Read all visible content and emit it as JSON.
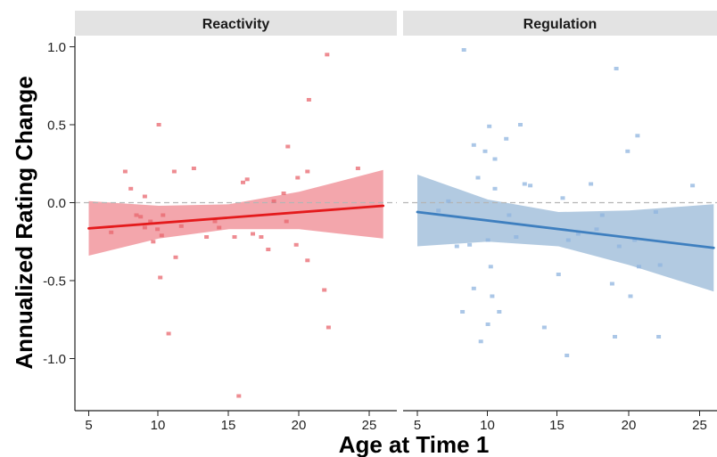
{
  "chart_data": {
    "type": "scatter",
    "xlabel": "Age at Time 1",
    "ylabel": "Annualized Rating Change",
    "xlim": [
      4,
      26.5
    ],
    "ylim": [
      -1.35,
      1.08
    ],
    "x_ticks": [
      "5",
      "10",
      "15",
      "20",
      "25"
    ],
    "y_ticks": [
      "1.0",
      "0.5",
      "0.0",
      "-0.5",
      "-1.0"
    ],
    "reference_line_y": 0,
    "reference_line_style": "dashed grey",
    "grid": false,
    "legend": "none",
    "panels": [
      {
        "facet": "Reactivity",
        "point_color": "#E8666E",
        "line_color": "#E41A1C",
        "band_color": "#F0939A",
        "fit": {
          "x": [
            5,
            26
          ],
          "y": [
            -0.165,
            -0.02
          ]
        },
        "ci_upper": {
          "x": [
            5,
            10,
            15,
            20,
            26
          ],
          "y": [
            0.01,
            -0.02,
            -0.01,
            0.07,
            0.21
          ]
        },
        "ci_lower": {
          "x": [
            5,
            10,
            15,
            20,
            26
          ],
          "y": [
            -0.34,
            -0.23,
            -0.17,
            -0.17,
            -0.23
          ]
        },
        "points": [
          [
            6.6,
            -0.19
          ],
          [
            7.6,
            0.2
          ],
          [
            8.0,
            0.09
          ],
          [
            8.4,
            -0.08
          ],
          [
            8.7,
            -0.09
          ],
          [
            9.0,
            -0.16
          ],
          [
            9.0,
            0.04
          ],
          [
            9.4,
            -0.12
          ],
          [
            9.6,
            -0.25
          ],
          [
            9.9,
            -0.17
          ],
          [
            10.0,
            0.5
          ],
          [
            10.1,
            -0.48
          ],
          [
            10.3,
            -0.08
          ],
          [
            10.2,
            -0.21
          ],
          [
            10.7,
            -0.84
          ],
          [
            11.1,
            0.2
          ],
          [
            11.2,
            -0.35
          ],
          [
            11.6,
            -0.15
          ],
          [
            12.5,
            0.22
          ],
          [
            13.4,
            -0.22
          ],
          [
            14.3,
            -0.16
          ],
          [
            14.0,
            -0.12
          ],
          [
            15.4,
            -0.22
          ],
          [
            15.7,
            -1.24
          ],
          [
            16.0,
            0.13
          ],
          [
            16.3,
            0.15
          ],
          [
            16.7,
            -0.2
          ],
          [
            17.3,
            -0.22
          ],
          [
            17.8,
            -0.3
          ],
          [
            18.2,
            0.01
          ],
          [
            18.9,
            0.06
          ],
          [
            19.1,
            -0.12
          ],
          [
            19.2,
            0.36
          ],
          [
            19.8,
            -0.27
          ],
          [
            19.9,
            0.16
          ],
          [
            20.7,
            0.66
          ],
          [
            20.6,
            0.2
          ],
          [
            20.6,
            -0.37
          ],
          [
            21.8,
            -0.56
          ],
          [
            22.0,
            0.95
          ],
          [
            22.1,
            -0.8
          ],
          [
            24.2,
            0.22
          ]
        ]
      },
      {
        "facet": "Regulation",
        "point_color": "#8FB4DF",
        "line_color": "#3E7FBF",
        "band_color": "#A1BEDA",
        "fit": {
          "x": [
            5,
            26
          ],
          "y": [
            -0.06,
            -0.29
          ]
        },
        "ci_upper": {
          "x": [
            5,
            10,
            15,
            20,
            26
          ],
          "y": [
            0.18,
            0.02,
            -0.06,
            -0.05,
            -0.01
          ]
        },
        "ci_lower": {
          "x": [
            5,
            10,
            15,
            20,
            26
          ],
          "y": [
            -0.28,
            -0.25,
            -0.28,
            -0.4,
            -0.57
          ]
        },
        "points": [
          [
            6.5,
            -0.05
          ],
          [
            7.2,
            0.01
          ],
          [
            7.8,
            -0.28
          ],
          [
            8.2,
            -0.7
          ],
          [
            8.3,
            0.98
          ],
          [
            8.7,
            -0.27
          ],
          [
            9.0,
            -0.55
          ],
          [
            9.0,
            0.37
          ],
          [
            9.3,
            0.16
          ],
          [
            9.5,
            -0.89
          ],
          [
            9.8,
            0.33
          ],
          [
            10.0,
            -0.24
          ],
          [
            10.0,
            -0.78
          ],
          [
            10.1,
            0.49
          ],
          [
            10.3,
            -0.6
          ],
          [
            10.2,
            -0.41
          ],
          [
            10.5,
            0.28
          ],
          [
            10.5,
            0.09
          ],
          [
            10.8,
            -0.7
          ],
          [
            11.3,
            0.41
          ],
          [
            11.5,
            -0.08
          ],
          [
            12.0,
            -0.22
          ],
          [
            12.3,
            0.5
          ],
          [
            12.6,
            0.12
          ],
          [
            13.0,
            0.11
          ],
          [
            14.0,
            -0.8
          ],
          [
            15.0,
            -0.46
          ],
          [
            15.3,
            0.03
          ],
          [
            15.6,
            -0.98
          ],
          [
            15.7,
            -0.24
          ],
          [
            16.4,
            -0.2
          ],
          [
            17.3,
            0.12
          ],
          [
            17.7,
            -0.17
          ],
          [
            18.1,
            -0.08
          ],
          [
            18.8,
            -0.52
          ],
          [
            19.0,
            -0.86
          ],
          [
            19.1,
            0.86
          ],
          [
            19.3,
            -0.28
          ],
          [
            19.9,
            0.33
          ],
          [
            20.1,
            -0.6
          ],
          [
            20.4,
            -0.24
          ],
          [
            20.6,
            0.43
          ],
          [
            20.7,
            -0.41
          ],
          [
            21.9,
            -0.06
          ],
          [
            22.1,
            -0.86
          ],
          [
            22.2,
            -0.4
          ],
          [
            24.5,
            0.11
          ]
        ]
      }
    ]
  }
}
